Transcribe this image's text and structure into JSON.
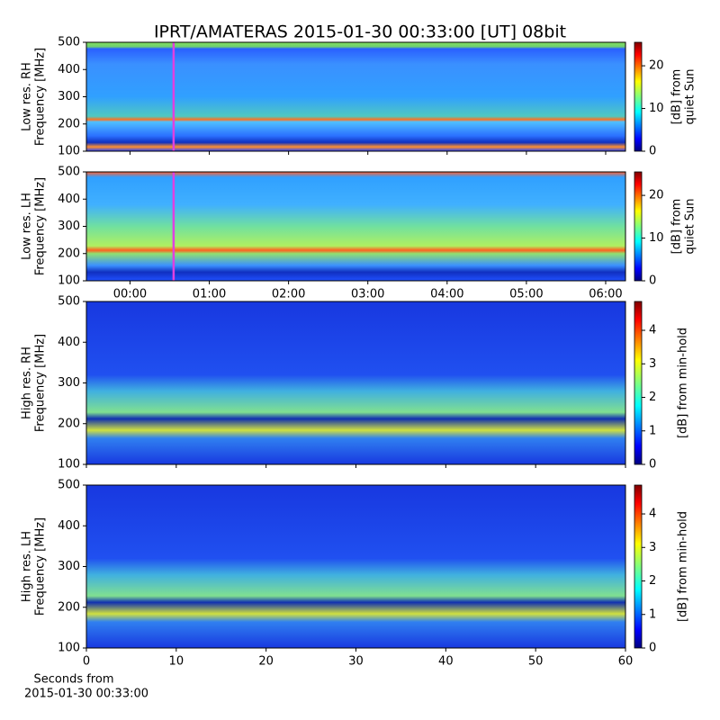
{
  "title": "IPRT/AMATERAS 2015-01-30 00:33:00 [UT]   08bit",
  "chart_data": [
    {
      "type": "heatmap",
      "ylabel": [
        "Low res. RH",
        "Frequency [MHz]"
      ],
      "xlim": [
        -0.55,
        6.25
      ],
      "xticks": [
        0,
        1,
        2,
        3,
        4,
        5,
        6
      ],
      "xtick_labels": false,
      "ylim": [
        100,
        500
      ],
      "yticks": [
        100,
        200,
        300,
        400,
        500
      ],
      "marker_x": 0.55,
      "marker_color": "#e040e0",
      "colormap": "jet",
      "clim": [
        0,
        25.5
      ],
      "cticks": [
        0,
        10,
        20
      ],
      "clabel": [
        "[dB] from",
        "quiet Sun"
      ]
    },
    {
      "type": "heatmap",
      "ylabel": [
        "Low res. LH",
        "Frequency [MHz]"
      ],
      "xlim": [
        -0.55,
        6.25
      ],
      "xticks": [
        {
          "value": 0,
          "label": "00:00"
        },
        {
          "value": 1,
          "label": "01:00"
        },
        {
          "value": 2,
          "label": "02:00"
        },
        {
          "value": 3,
          "label": "03:00"
        },
        {
          "value": 4,
          "label": "04:00"
        },
        {
          "value": 5,
          "label": "05:00"
        },
        {
          "value": 6,
          "label": "06:00"
        }
      ],
      "xtick_labels": true,
      "ylim": [
        100,
        500
      ],
      "yticks": [
        100,
        200,
        300,
        400,
        500
      ],
      "marker_x": 0.55,
      "marker_color": "#e040e0",
      "colormap": "jet",
      "clim": [
        0,
        25.5
      ],
      "cticks": [
        0,
        10,
        20
      ],
      "clabel": [
        "[dB] from",
        "quiet Sun"
      ]
    },
    {
      "type": "heatmap",
      "ylabel": [
        "High res. RH",
        "Frequency [MHz]"
      ],
      "xlim": [
        0,
        60
      ],
      "xticks": [
        0,
        10,
        20,
        30,
        40,
        50,
        60
      ],
      "xtick_labels": false,
      "ylim": [
        100,
        500
      ],
      "yticks": [
        100,
        200,
        300,
        400,
        500
      ],
      "colormap": "jet",
      "clim": [
        0,
        4.86
      ],
      "cticks": [
        0,
        1,
        2,
        3,
        4
      ],
      "clabel": [
        "[dB] from min-hold"
      ]
    },
    {
      "type": "heatmap",
      "ylabel": [
        "High res. LH",
        "Frequency [MHz]"
      ],
      "xlim": [
        0,
        60
      ],
      "xticks": [
        0,
        10,
        20,
        30,
        40,
        50,
        60
      ],
      "xtick_labels": true,
      "xlabel": [
        "Seconds from",
        "2015-01-30 00:33:00"
      ],
      "ylim": [
        100,
        500
      ],
      "yticks": [
        100,
        200,
        300,
        400,
        500
      ],
      "colormap": "jet",
      "clim": [
        0,
        4.86
      ],
      "cticks": [
        0,
        1,
        2,
        3,
        4
      ],
      "clabel": [
        "[dB] from min-hold"
      ]
    }
  ]
}
